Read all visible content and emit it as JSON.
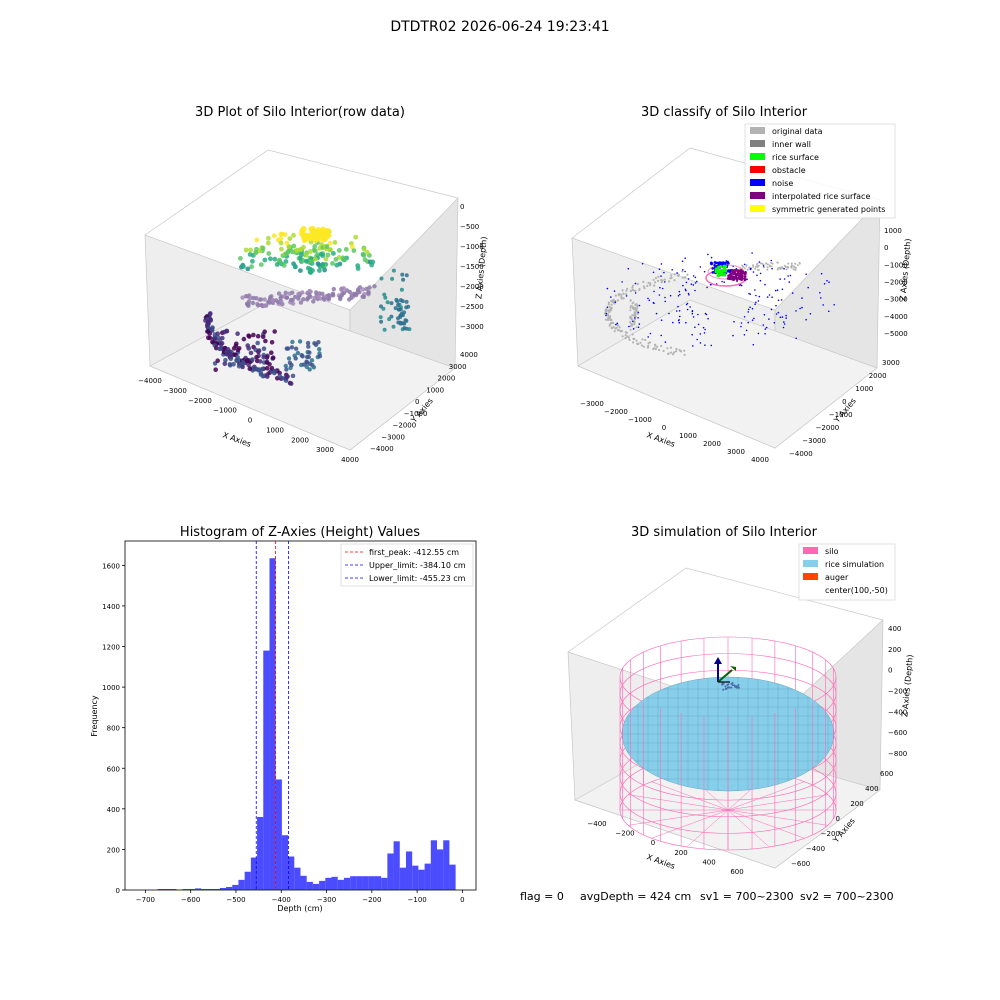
{
  "figure": {
    "suptitle": "DTDTR02 2026-06-24 19:23:41"
  },
  "status_line": {
    "flag": "flag = 0",
    "avg_depth": "avgDepth = 424 cm",
    "sv1": "sv1 = 700~2300",
    "sv2": "sv2 = 700~2300"
  },
  "chart_data": [
    {
      "type": "scatter",
      "projection": "3d",
      "title": "3D Plot of Silo Interior(row data)",
      "xlabel": "X Axies",
      "ylabel": "Y Axies",
      "zlabel": "Z Axies (Depth)",
      "xticks": [
        "−4000",
        "−3000",
        "−2000",
        "−1000",
        "0",
        "1000",
        "2000",
        "3000",
        "4000"
      ],
      "yticks": [
        "−4000",
        "−3000",
        "−2000",
        "−1000",
        "0",
        "1000",
        "2000",
        "3000",
        "4000"
      ],
      "zticks": [
        "0",
        "−500",
        "−1000",
        "−1500",
        "−2000",
        "−2500",
        "−3000"
      ],
      "xlim": [
        -4000,
        4000
      ],
      "ylim": [
        -4000,
        4000
      ],
      "zlim": [
        -3300,
        200
      ],
      "colormap": "viridis"
    },
    {
      "type": "scatter",
      "projection": "3d",
      "title": "3D classify of Silo Interior",
      "xlabel": "X Axies",
      "ylabel": "Y Axies",
      "zlabel": "Z Axies (Depth)",
      "xticks": [
        "−3000",
        "−2000",
        "−1000",
        "0",
        "1000",
        "2000",
        "3000",
        "4000"
      ],
      "yticks": [
        "−4000",
        "−3000",
        "−2000",
        "−1000",
        "0",
        "1000",
        "2000",
        "3000"
      ],
      "zticks": [
        "1000",
        "0",
        "−1000",
        "−2000",
        "−3000",
        "−4000",
        "−5000"
      ],
      "legend_position": "upper right",
      "legend": [
        {
          "label": "original data",
          "color": "#b3b3b3"
        },
        {
          "label": "inner wall",
          "color": "#808080"
        },
        {
          "label": "rice surface",
          "color": "#00ff00"
        },
        {
          "label": "obstacle",
          "color": "#ff0000"
        },
        {
          "label": "noise",
          "color": "#0000ff"
        },
        {
          "label": "interpolated rice surface",
          "color": "#800080"
        },
        {
          "label": "symmetric generated points",
          "color": "#ffff00"
        }
      ]
    },
    {
      "type": "bar",
      "title": "Histogram of Z-Axies (Height) Values",
      "xlabel": "Depth (cm)",
      "ylabel": "Frequency",
      "xlim": [
        -745,
        30
      ],
      "ylim": [
        0,
        1720
      ],
      "xticks": [
        -700,
        -600,
        -500,
        -400,
        -300,
        -200,
        -100,
        0
      ],
      "xtick_labels": [
        "−700",
        "−600",
        "−500",
        "−400",
        "−300",
        "−200",
        "−100",
        "0"
      ],
      "yticks": [
        0,
        200,
        400,
        600,
        800,
        1000,
        1200,
        1400,
        1600
      ],
      "bar_color": "#0000ff",
      "bins": [
        {
          "x": -700,
          "count": 0
        },
        {
          "x": -686.3,
          "count": 0
        },
        {
          "x": -672.6,
          "count": 5
        },
        {
          "x": -658.9,
          "count": 5
        },
        {
          "x": -645.2,
          "count": 5
        },
        {
          "x": -631.5,
          "count": 2
        },
        {
          "x": -617.8,
          "count": 5
        },
        {
          "x": -604.1,
          "count": 5
        },
        {
          "x": -590.4,
          "count": 8
        },
        {
          "x": -576.7,
          "count": 5
        },
        {
          "x": -563,
          "count": 5
        },
        {
          "x": -549.3,
          "count": 5
        },
        {
          "x": -535.6,
          "count": 10
        },
        {
          "x": -521.9,
          "count": 15
        },
        {
          "x": -508.2,
          "count": 25
        },
        {
          "x": -494.5,
          "count": 50
        },
        {
          "x": -480.8,
          "count": 90
        },
        {
          "x": -467.1,
          "count": 160
        },
        {
          "x": -453.4,
          "count": 360
        },
        {
          "x": -439.7,
          "count": 1180
        },
        {
          "x": -426,
          "count": 1635
        },
        {
          "x": -412.3,
          "count": 545
        },
        {
          "x": -398.6,
          "count": 270
        },
        {
          "x": -384.9,
          "count": 165
        },
        {
          "x": -371.2,
          "count": 110
        },
        {
          "x": -357.5,
          "count": 70
        },
        {
          "x": -343.8,
          "count": 40
        },
        {
          "x": -330.1,
          "count": 30
        },
        {
          "x": -316.4,
          "count": 45
        },
        {
          "x": -302.7,
          "count": 60
        },
        {
          "x": -289,
          "count": 65
        },
        {
          "x": -275.3,
          "count": 50
        },
        {
          "x": -261.6,
          "count": 60
        },
        {
          "x": -247.9,
          "count": 68
        },
        {
          "x": -234.2,
          "count": 68
        },
        {
          "x": -220.5,
          "count": 68
        },
        {
          "x": -206.8,
          "count": 68
        },
        {
          "x": -193.1,
          "count": 68
        },
        {
          "x": -179.4,
          "count": 60
        },
        {
          "x": -165.7,
          "count": 180
        },
        {
          "x": -152,
          "count": 240
        },
        {
          "x": -138.3,
          "count": 110
        },
        {
          "x": -124.6,
          "count": 190
        },
        {
          "x": -110.9,
          "count": 120
        },
        {
          "x": -97.2,
          "count": 100
        },
        {
          "x": -83.5,
          "count": 130
        },
        {
          "x": -69.8,
          "count": 245
        },
        {
          "x": -56.1,
          "count": 200
        },
        {
          "x": -42.4,
          "count": 245
        },
        {
          "x": -28.7,
          "count": 125
        }
      ],
      "bin_width": 13.7,
      "vlines": [
        {
          "label": "first_peak: -412.55 cm",
          "x": -412.55,
          "color": "#ff0000"
        },
        {
          "label": "Upper_limit: -384.10 cm",
          "x": -384.1,
          "color": "#0000ff"
        },
        {
          "label": "Lower_limit: -455.23 cm",
          "x": -455.23,
          "color": "#0000ff"
        }
      ],
      "legend_position": "upper right"
    },
    {
      "type": "scatter",
      "projection": "3d",
      "title": "3D simulation of Silo Interior",
      "xlabel": "X Axies",
      "ylabel": "Y Axies",
      "zlabel": "Z Axies (Depth)",
      "xticks": [
        "−400",
        "−200",
        "0",
        "200",
        "400",
        "600"
      ],
      "yticks": [
        "−600",
        "−400",
        "−200",
        "0",
        "200",
        "400",
        "600"
      ],
      "zticks": [
        "400",
        "200",
        "0",
        "−200",
        "−400",
        "−600",
        "−800"
      ],
      "legend_position": "upper right",
      "legend": [
        {
          "label": "silo",
          "color": "#ff69b4"
        },
        {
          "label": "rice simulation",
          "color": "#87ceeb"
        },
        {
          "label": "auger",
          "color": "#ff4500"
        },
        {
          "label": "center(100,-50)",
          "color": "none"
        }
      ]
    }
  ]
}
